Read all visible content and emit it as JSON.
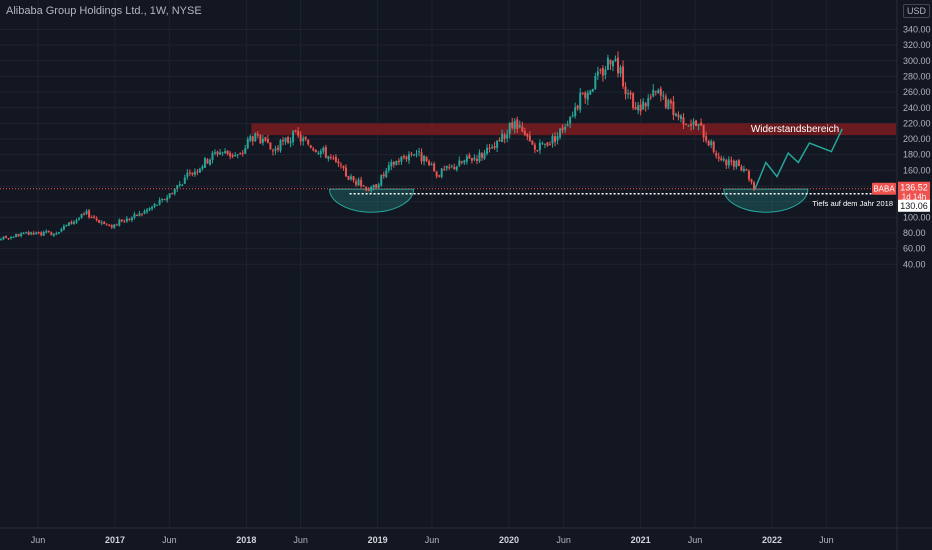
{
  "header": {
    "title": "Alibaba Group Holdings Ltd., 1W, NYSE",
    "currency": "USD"
  },
  "price_axis": {
    "ticks": [
      "340.00",
      "320.00",
      "300.00",
      "280.00",
      "260.00",
      "240.00",
      "220.00",
      "200.00",
      "180.00",
      "160.00",
      "140.00",
      "120.00",
      "100.00",
      "80.00",
      "60.00",
      "40.00"
    ]
  },
  "time_axis": {
    "ticks": [
      {
        "label": "Jun",
        "bold": false
      },
      {
        "label": "2017",
        "bold": true
      },
      {
        "label": "Jun",
        "bold": false
      },
      {
        "label": "2018",
        "bold": true
      },
      {
        "label": "Jun",
        "bold": false
      },
      {
        "label": "2019",
        "bold": true
      },
      {
        "label": "Jun",
        "bold": false
      },
      {
        "label": "2020",
        "bold": true
      },
      {
        "label": "Jun",
        "bold": false
      },
      {
        "label": "2021",
        "bold": true
      },
      {
        "label": "Jun",
        "bold": false
      },
      {
        "label": "2022",
        "bold": true
      },
      {
        "label": "Jun",
        "bold": false
      }
    ]
  },
  "markers": {
    "symbol": "BABA",
    "last_price": "136.52",
    "countdown": "1d 14h",
    "support_price": "130.06"
  },
  "annotations": {
    "resistance_label": "Widerstandsbereich",
    "support_label": "Tiefs auf dem Jahr 2018"
  },
  "colors": {
    "background": "#131722",
    "up": "#26a69a",
    "down": "#ef5350",
    "resistance_zone": "#7b1c1f",
    "projection": "#26a69a",
    "price_line": "#ef5350"
  },
  "chart_data": {
    "type": "candlestick",
    "symbol": "BABA",
    "interval": "1W",
    "exchange": "NYSE",
    "ylim": [
      25,
      355
    ],
    "resistance_zone": [
      205,
      220
    ],
    "support_level": 130.06,
    "last_price": 136.52,
    "price_path": [
      {
        "date": "2016-01",
        "close": 70
      },
      {
        "date": "2016-04",
        "close": 78
      },
      {
        "date": "2016-07",
        "close": 80
      },
      {
        "date": "2016-10",
        "close": 105
      },
      {
        "date": "2016-12",
        "close": 88
      },
      {
        "date": "2017-03",
        "close": 105
      },
      {
        "date": "2017-05",
        "close": 122
      },
      {
        "date": "2017-07",
        "close": 150
      },
      {
        "date": "2017-10",
        "close": 185
      },
      {
        "date": "2017-12",
        "close": 178
      },
      {
        "date": "2018-01",
        "close": 205
      },
      {
        "date": "2018-03",
        "close": 185
      },
      {
        "date": "2018-05",
        "close": 205
      },
      {
        "date": "2018-08",
        "close": 180
      },
      {
        "date": "2018-10",
        "close": 150
      },
      {
        "date": "2018-12",
        "close": 135
      },
      {
        "date": "2019-02",
        "close": 170
      },
      {
        "date": "2019-04",
        "close": 185
      },
      {
        "date": "2019-06",
        "close": 155
      },
      {
        "date": "2019-09",
        "close": 175
      },
      {
        "date": "2019-11",
        "close": 185
      },
      {
        "date": "2020-01",
        "close": 220
      },
      {
        "date": "2020-03",
        "close": 185
      },
      {
        "date": "2020-05",
        "close": 205
      },
      {
        "date": "2020-07",
        "close": 250
      },
      {
        "date": "2020-09",
        "close": 285
      },
      {
        "date": "2020-10",
        "close": 310
      },
      {
        "date": "2020-12",
        "close": 235
      },
      {
        "date": "2021-02",
        "close": 260
      },
      {
        "date": "2021-04",
        "close": 230
      },
      {
        "date": "2021-06",
        "close": 215
      },
      {
        "date": "2021-08",
        "close": 170
      },
      {
        "date": "2021-10",
        "close": 165
      },
      {
        "date": "2021-11",
        "close": 136.52
      }
    ],
    "projection_path": [
      {
        "date": "2021-11",
        "value": 136.52
      },
      {
        "date": "2021-12",
        "value": 170
      },
      {
        "date": "2022-01",
        "value": 152
      },
      {
        "date": "2022-02",
        "value": 182
      },
      {
        "date": "2022-03",
        "value": 170
      },
      {
        "date": "2022-04",
        "value": 195
      },
      {
        "date": "2022-06",
        "value": 184
      },
      {
        "date": "2022-07",
        "value": 213
      }
    ]
  }
}
